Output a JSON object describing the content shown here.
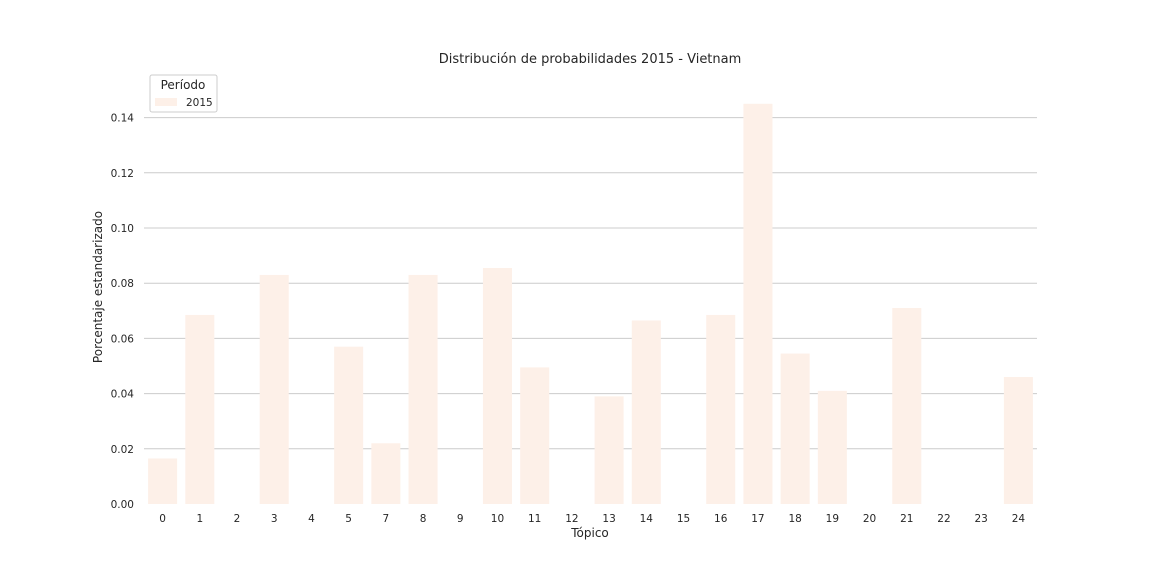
{
  "chart_data": {
    "type": "bar",
    "title": "Distribución de probabilidades 2015 - Vietnam",
    "xlabel": "Tópico",
    "ylabel": "Porcentaje estandarizado",
    "categories": [
      "0",
      "1",
      "2",
      "3",
      "4",
      "5",
      "7",
      "8",
      "9",
      "10",
      "11",
      "12",
      "13",
      "14",
      "15",
      "16",
      "17",
      "18",
      "19",
      "20",
      "21",
      "22",
      "23",
      "24"
    ],
    "series": [
      {
        "name": "2015",
        "values": [
          0.0165,
          0.0685,
          0,
          0.083,
          0,
          0.057,
          0.022,
          0.083,
          0,
          0.0855,
          0.0495,
          0,
          0.039,
          0.0665,
          0,
          0.0685,
          0.145,
          0.0545,
          0.041,
          0,
          0.071,
          0,
          0,
          0.046
        ],
        "color": "#fdf0e8"
      }
    ],
    "ylim": [
      0,
      0.15
    ],
    "yticks": [
      "0.00",
      "0.02",
      "0.04",
      "0.06",
      "0.08",
      "0.10",
      "0.12",
      "0.14"
    ],
    "ytick_values": [
      0,
      0.02,
      0.04,
      0.06,
      0.08,
      0.1,
      0.12,
      0.14
    ],
    "grid": true,
    "legend": {
      "title": "Período",
      "placement": "top-left"
    }
  }
}
